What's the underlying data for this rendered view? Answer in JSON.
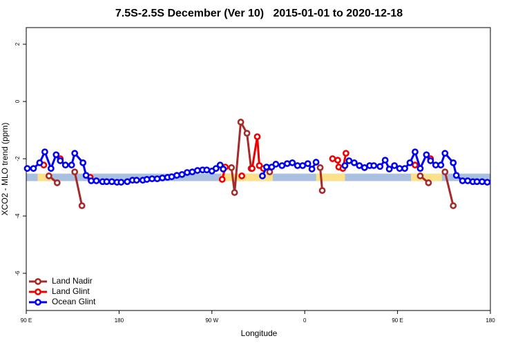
{
  "chart_data": {
    "type": "line",
    "title": "7.5S-2.5S December (Ver 10)   2015-01-01 to 2020-12-18",
    "xlabel": "Longitude",
    "ylabel": "XCO2 - MLO trend (ppm)",
    "xlim": [
      90,
      540
    ],
    "ylim": [
      -7.3,
      2.58
    ],
    "xticks": [
      {
        "value": 90,
        "label": "90 E"
      },
      {
        "value": 180,
        "label": "180"
      },
      {
        "value": 270,
        "label": "90 W"
      },
      {
        "value": 360,
        "label": "0"
      },
      {
        "value": 450,
        "label": "90 E"
      },
      {
        "value": 540,
        "label": "180"
      }
    ],
    "yticks": [
      2,
      0,
      -2,
      -4,
      -6
    ],
    "legend": "bottom-left",
    "band": {
      "ylim": [
        -2.78,
        -2.52
      ],
      "ocean_color": "#a9c0e0",
      "land_color": "#fde08a",
      "land": [
        [
          101,
          115
        ],
        [
          279,
          329
        ],
        [
          371,
          399
        ],
        [
          463,
          493
        ]
      ]
    },
    "series": [
      {
        "name": "Land Nadir",
        "color": "#a52a2a",
        "x": [
          112,
          120,
          null,
          137,
          144,
          null,
          289,
          292,
          298,
          304,
          308,
          null,
          326,
          null,
          375,
          377,
          null,
          472,
          480,
          null,
          496,
          504
        ],
        "values": [
          -2.6,
          -2.84,
          null,
          -2.46,
          -3.64,
          null,
          -2.31,
          -3.18,
          -0.72,
          -1.11,
          -2.34,
          null,
          -2.46,
          null,
          -2.31,
          -3.11,
          null,
          -2.6,
          -2.84,
          null,
          -2.46,
          -3.64
        ]
      },
      {
        "name": "Land Glint",
        "color": "#ee0000",
        "x": [
          107,
          null,
          123,
          null,
          152,
          null,
          280,
          283,
          null,
          299,
          null,
          309,
          314,
          316,
          320,
          null,
          387,
          392,
          393,
          397,
          400,
          null,
          467,
          null,
          482
        ],
        "values": [
          -2.22,
          null,
          -2.0,
          null,
          -2.65,
          null,
          -2.72,
          -2.29,
          null,
          -2.6,
          null,
          -2.34,
          -1.23,
          -2.24,
          -2.34,
          null,
          -2.0,
          -2.05,
          -2.29,
          -2.34,
          -1.81,
          null,
          -2.22,
          null,
          -2.0
        ]
      },
      {
        "name": "Ocean Glint",
        "color": "#0000ee",
        "x": [
          91,
          97,
          103,
          108,
          114,
          119,
          123,
          128,
          134,
          137,
          145,
          148,
          153,
          158,
          164,
          168,
          173,
          178,
          182,
          188,
          193,
          197,
          203,
          207,
          212,
          217,
          222,
          227,
          231,
          236,
          241,
          246,
          251,
          256,
          261,
          265,
          270,
          274,
          278,
          281,
          null,
          319,
          323,
          328,
          332,
          338,
          343,
          348,
          353,
          358,
          363,
          367,
          371,
          null,
          399,
          403,
          408,
          413,
          418,
          423,
          427,
          433,
          438,
          442,
          447,
          452,
          457,
          462,
          467,
          472,
          478,
          482,
          487,
          492,
          496,
          504,
          507,
          513,
          518,
          523,
          527,
          532,
          537
        ],
        "values": [
          -2.34,
          -2.34,
          -2.14,
          -1.76,
          -2.34,
          -1.86,
          -2.07,
          -2.22,
          -2.22,
          -1.81,
          -2.14,
          -2.58,
          -2.77,
          -2.77,
          -2.8,
          -2.8,
          -2.8,
          -2.82,
          -2.82,
          -2.8,
          -2.75,
          -2.75,
          -2.75,
          -2.72,
          -2.7,
          -2.7,
          -2.67,
          -2.65,
          -2.63,
          -2.58,
          -2.55,
          -2.48,
          -2.46,
          -2.41,
          -2.39,
          -2.39,
          -2.43,
          -2.34,
          -2.22,
          -2.36,
          null,
          -2.6,
          -2.29,
          -2.29,
          -2.19,
          -2.24,
          -2.17,
          -2.14,
          -2.24,
          -2.24,
          -2.17,
          -2.36,
          -2.12,
          null,
          -2.24,
          -2.07,
          -2.14,
          -2.24,
          -2.31,
          -2.24,
          -2.24,
          -2.27,
          -2.05,
          -2.36,
          -2.24,
          -2.34,
          -2.34,
          -2.14,
          -1.76,
          -2.34,
          -1.86,
          -2.07,
          -2.22,
          -2.22,
          -1.81,
          -2.14,
          -2.58,
          -2.77,
          -2.77,
          -2.8,
          -2.8,
          -2.8,
          -2.82
        ]
      }
    ]
  }
}
